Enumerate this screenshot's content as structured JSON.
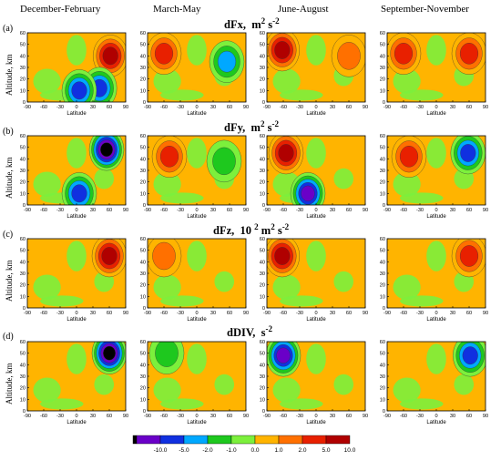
{
  "seasons": [
    "December-February",
    "March-May",
    "June-August",
    "September-November"
  ],
  "rows": [
    {
      "label": "(a)",
      "title_main": "dFx,",
      "title_unit": "m",
      "title_exp": "2",
      "title_unit2": "s",
      "title_exp2": "-2"
    },
    {
      "label": "(b)",
      "title_main": "dFy,",
      "title_unit": "m",
      "title_exp": "2",
      "title_unit2": "s",
      "title_exp2": "-2"
    },
    {
      "label": "(c)",
      "title_main": "dFz,",
      "title_unit": "10",
      "title_exp": "2",
      "title_unit2": "m",
      "title_exp2": "2",
      "title_unit3": "s",
      "title_exp3": "-2"
    },
    {
      "label": "(d)",
      "title_main": "dDIV,",
      "title_unit": "s",
      "title_exp": "-2"
    }
  ],
  "axes": {
    "ylabel": "Altitude, km",
    "xlabel": "Latitude",
    "xticks": [
      "-90",
      "-60",
      "-30",
      "0",
      "30",
      "60",
      "90"
    ],
    "yticks": [
      "0",
      "10",
      "20",
      "30",
      "40",
      "50",
      "60"
    ]
  },
  "colorbar": {
    "labels": [
      "-10.0",
      "-5.0",
      "-2.0",
      "-1.0",
      "0.0",
      "1.0",
      "2.0",
      "5.0",
      "10.0"
    ],
    "colors": [
      "#000000",
      "#6a00c8",
      "#1030e0",
      "#00a8ff",
      "#1ec81e",
      "#7cf03c",
      "#ffb400",
      "#ff7000",
      "#e82000",
      "#b00000"
    ]
  },
  "chart_data": {
    "type": "heatmap",
    "description_fields": "each panel: lat range [-90,90], altitude range [0,60] km; features list qualitative extrema (lat, alt, level index into colorbar.colors)",
    "panels": [
      {
        "row": "(a)",
        "season": "December-February",
        "xlim": [
          -90,
          90
        ],
        "ylim": [
          0,
          60
        ],
        "features": [
          {
            "lat": 62,
            "alt": 40,
            "level": 9
          },
          {
            "lat": 42,
            "alt": 12,
            "level": 2
          },
          {
            "lat": 5,
            "alt": 10,
            "level": 2
          }
        ]
      },
      {
        "row": "(a)",
        "season": "March-May",
        "xlim": [
          -90,
          90
        ],
        "ylim": [
          0,
          60
        ],
        "features": [
          {
            "lat": -60,
            "alt": 42,
            "level": 8
          },
          {
            "lat": 55,
            "alt": 35,
            "level": 3
          }
        ]
      },
      {
        "row": "(a)",
        "season": "June-August",
        "xlim": [
          -90,
          90
        ],
        "ylim": [
          0,
          60
        ],
        "features": [
          {
            "lat": -62,
            "alt": 45,
            "level": 9
          },
          {
            "lat": 60,
            "alt": 40,
            "level": 7
          }
        ]
      },
      {
        "row": "(a)",
        "season": "September-November",
        "xlim": [
          -90,
          90
        ],
        "ylim": [
          0,
          60
        ],
        "features": [
          {
            "lat": -60,
            "alt": 42,
            "level": 8
          },
          {
            "lat": 60,
            "alt": 42,
            "level": 8
          }
        ]
      },
      {
        "row": "(b)",
        "season": "December-February",
        "xlim": [
          -90,
          90
        ],
        "ylim": [
          0,
          60
        ],
        "features": [
          {
            "lat": 55,
            "alt": 48,
            "level": 0
          },
          {
            "lat": 5,
            "alt": 10,
            "level": 2
          }
        ]
      },
      {
        "row": "(b)",
        "season": "March-May",
        "xlim": [
          -90,
          90
        ],
        "ylim": [
          0,
          60
        ],
        "features": [
          {
            "lat": -50,
            "alt": 42,
            "level": 8
          },
          {
            "lat": 50,
            "alt": 38,
            "level": 4
          }
        ]
      },
      {
        "row": "(b)",
        "season": "June-August",
        "xlim": [
          -90,
          90
        ],
        "ylim": [
          0,
          60
        ],
        "features": [
          {
            "lat": -55,
            "alt": 45,
            "level": 9
          },
          {
            "lat": -15,
            "alt": 10,
            "level": 1
          }
        ]
      },
      {
        "row": "(b)",
        "season": "September-November",
        "xlim": [
          -90,
          90
        ],
        "ylim": [
          0,
          60
        ],
        "features": [
          {
            "lat": -50,
            "alt": 42,
            "level": 8
          },
          {
            "lat": 58,
            "alt": 45,
            "level": 2
          }
        ]
      },
      {
        "row": "(c)",
        "season": "December-February",
        "xlim": [
          -90,
          90
        ],
        "ylim": [
          0,
          60
        ],
        "features": [
          {
            "lat": 60,
            "alt": 45,
            "level": 9
          }
        ]
      },
      {
        "row": "(c)",
        "season": "March-May",
        "xlim": [
          -90,
          90
        ],
        "ylim": [
          0,
          60
        ],
        "features": [
          {
            "lat": -60,
            "alt": 45,
            "level": 7
          }
        ]
      },
      {
        "row": "(c)",
        "season": "June-August",
        "xlim": [
          -90,
          90
        ],
        "ylim": [
          0,
          60
        ],
        "features": [
          {
            "lat": -62,
            "alt": 45,
            "level": 9
          }
        ]
      },
      {
        "row": "(c)",
        "season": "September-November",
        "xlim": [
          -90,
          90
        ],
        "ylim": [
          0,
          60
        ],
        "features": [
          {
            "lat": 60,
            "alt": 45,
            "level": 8
          }
        ]
      },
      {
        "row": "(d)",
        "season": "December-February",
        "xlim": [
          -90,
          90
        ],
        "ylim": [
          0,
          60
        ],
        "features": [
          {
            "lat": 60,
            "alt": 50,
            "level": 0
          }
        ]
      },
      {
        "row": "(d)",
        "season": "March-May",
        "xlim": [
          -90,
          90
        ],
        "ylim": [
          0,
          60
        ],
        "features": [
          {
            "lat": -55,
            "alt": 50,
            "level": 4
          }
        ]
      },
      {
        "row": "(d)",
        "season": "June-August",
        "xlim": [
          -90,
          90
        ],
        "ylim": [
          0,
          60
        ],
        "features": [
          {
            "lat": -60,
            "alt": 48,
            "level": 1
          }
        ]
      },
      {
        "row": "(d)",
        "season": "September-November",
        "xlim": [
          -90,
          90
        ],
        "ylim": [
          0,
          60
        ],
        "features": [
          {
            "lat": 62,
            "alt": 48,
            "level": 2
          }
        ]
      }
    ]
  }
}
